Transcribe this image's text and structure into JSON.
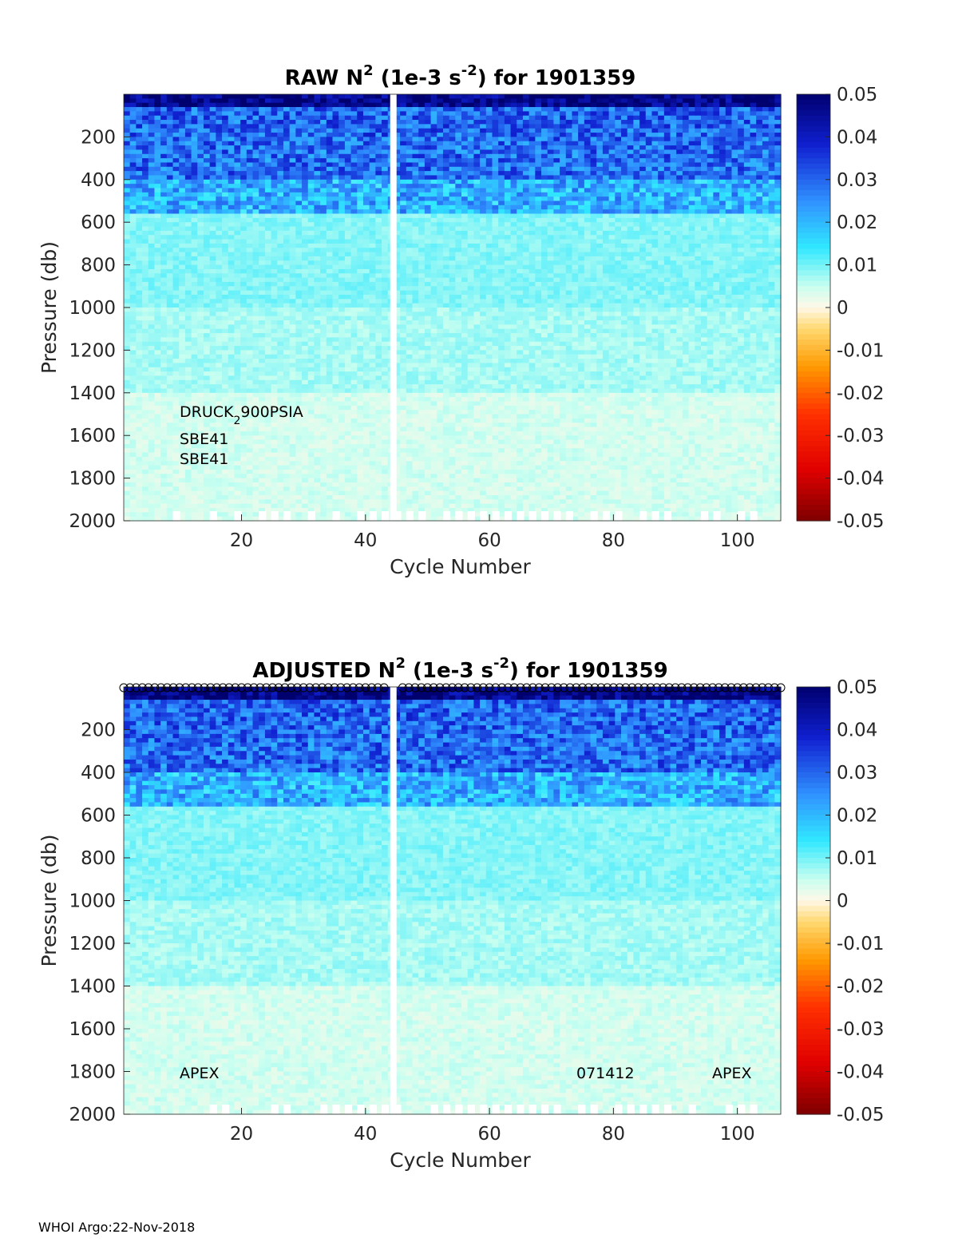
{
  "footer": "WHOI Argo:22-Nov-2018",
  "colormap": {
    "min": -0.05,
    "max": 0.05,
    "stops": [
      [
        0.0,
        "#7f0000"
      ],
      [
        0.12,
        "#e00000"
      ],
      [
        0.25,
        "#ff3000"
      ],
      [
        0.36,
        "#ff9900"
      ],
      [
        0.45,
        "#ffd870"
      ],
      [
        0.5,
        "#fff8e8"
      ],
      [
        0.55,
        "#c8fff0"
      ],
      [
        0.64,
        "#30e8ff"
      ],
      [
        0.75,
        "#3090ff"
      ],
      [
        0.88,
        "#1020d0"
      ],
      [
        1.0,
        "#00006f"
      ]
    ]
  },
  "chart_data": [
    {
      "type": "heatmap",
      "title": {
        "prefix": "RAW N",
        "sup1": "2",
        "mid": " (1e-3 s",
        "sup2": "-2",
        "suffix": ") for 1901359"
      },
      "xlabel": "Cycle Number",
      "ylabel": "Pressure (db)",
      "xlim": [
        1,
        107
      ],
      "ylim": [
        0,
        2000
      ],
      "xticks": [
        20,
        40,
        60,
        80,
        100
      ],
      "yticks": [
        200,
        400,
        600,
        800,
        1000,
        1200,
        1400,
        1600,
        1800,
        2000
      ],
      "gap_cycle": 44.5,
      "colorbar": {
        "ticks": [
          "0.05",
          "0.04",
          "0.03",
          "0.02",
          "0.01",
          "0",
          "-0.01",
          "-0.02",
          "-0.03",
          "-0.04",
          "-0.05"
        ]
      },
      "profile": [
        {
          "pressure_max": 60,
          "value": 0.048
        },
        {
          "pressure_max": 200,
          "value": 0.03
        },
        {
          "pressure_max": 400,
          "value": 0.029
        },
        {
          "pressure_max": 550,
          "value": 0.021
        },
        {
          "pressure_max": 1000,
          "value": 0.009
        },
        {
          "pressure_max": 1400,
          "value": 0.007
        },
        {
          "pressure_max": 2000,
          "value": 0.004
        }
      ],
      "annotations": {
        "sensor1": "DRUCK",
        "sensor1_sub": "2",
        "sensor1_rest": "900PSIA",
        "sensor2": "SBE41",
        "sensor3": "SBE41"
      }
    },
    {
      "type": "heatmap",
      "title": {
        "prefix": "ADJUSTED N",
        "sup1": "2",
        "mid": " (1e-3 s",
        "sup2": "-2",
        "suffix": ") for 1901359"
      },
      "xlabel": "Cycle Number",
      "ylabel": "Pressure (db)",
      "xlim": [
        1,
        107
      ],
      "ylim": [
        0,
        2000
      ],
      "xticks": [
        20,
        40,
        60,
        80,
        100
      ],
      "yticks": [
        200,
        400,
        600,
        800,
        1000,
        1200,
        1400,
        1600,
        1800,
        2000
      ],
      "gap_cycle": 44.5,
      "colorbar": {
        "ticks": [
          "0.05",
          "0.04",
          "0.03",
          "0.02",
          "0.01",
          "0",
          "-0.01",
          "-0.02",
          "-0.03",
          "-0.04",
          "-0.05"
        ]
      },
      "profile": [
        {
          "pressure_max": 60,
          "value": 0.048
        },
        {
          "pressure_max": 200,
          "value": 0.03
        },
        {
          "pressure_max": 400,
          "value": 0.029
        },
        {
          "pressure_max": 550,
          "value": 0.021
        },
        {
          "pressure_max": 1000,
          "value": 0.009
        },
        {
          "pressure_max": 1400,
          "value": 0.007
        },
        {
          "pressure_max": 2000,
          "value": 0.004
        }
      ],
      "annotations": {
        "platform_left": "APEX",
        "serial": "071412",
        "platform_right": "APEX"
      }
    }
  ]
}
